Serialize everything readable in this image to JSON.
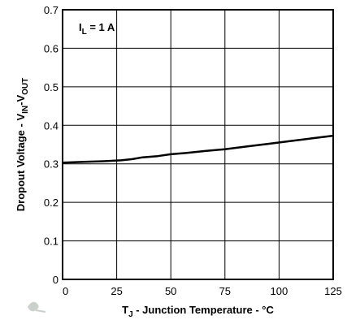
{
  "chart_data": {
    "type": "line",
    "title": "",
    "xlabel": {
      "main": "T",
      "sub": "J",
      "rest": " - Junction Temperature - °C"
    },
    "ylabel": {
      "p1": "Dropout Voltage - V",
      "s1": "IN",
      "p2": "-V",
      "s2": "OUT"
    },
    "xlim": [
      0,
      125
    ],
    "ylim": [
      0,
      0.7
    ],
    "x_ticks": [
      0,
      25,
      50,
      75,
      100,
      125
    ],
    "x_tick_labels": [
      "0",
      "25",
      "50",
      "75",
      "100",
      "125"
    ],
    "y_ticks": [
      0,
      0.1,
      0.2,
      0.3,
      0.4,
      0.5,
      0.6,
      0.7
    ],
    "y_tick_labels": [
      "0",
      "0.1",
      "0.2",
      "0.3",
      "0.4",
      "0.5",
      "0.6",
      "0.7"
    ],
    "grid": true,
    "annotation": {
      "main": "I",
      "sub": "L",
      "rest": " = 1 A"
    },
    "series": [
      {
        "x": [
          0,
          10,
          20,
          27,
          32,
          37,
          44,
          50,
          57,
          65,
          75,
          85,
          95,
          105,
          115,
          125
        ],
        "values": [
          0.303,
          0.305,
          0.307,
          0.309,
          0.312,
          0.317,
          0.32,
          0.325,
          0.328,
          0.333,
          0.338,
          0.345,
          0.352,
          0.359,
          0.366,
          0.373
        ]
      }
    ]
  }
}
